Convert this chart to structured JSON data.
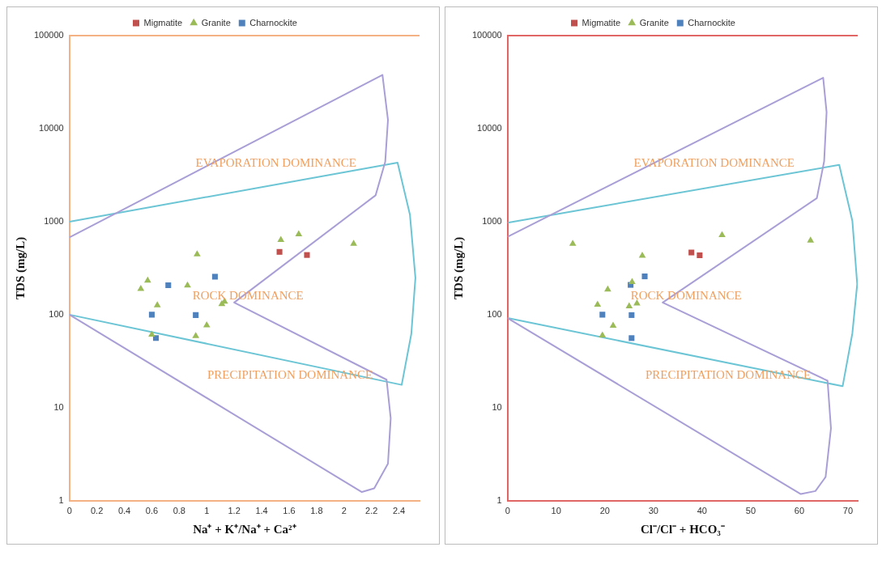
{
  "chart_data": [
    {
      "type": "scatter",
      "log": "y",
      "legend": "top",
      "xlabel": "Na⁺ + K⁺/Na⁺ + Ca²⁺",
      "ylabel": "TDS (mg/L)",
      "xlim": [
        0,
        2.55
      ],
      "xticks": [
        0,
        0.2,
        0.4,
        0.6,
        0.8,
        1,
        1.2,
        1.4,
        1.6,
        1.8,
        2,
        2.2,
        {
          "value": 2.4,
          "label": "2.4"
        }
      ],
      "ylim": [
        1,
        100000
      ],
      "yticks": [
        1,
        10,
        100,
        1000,
        10000,
        100000
      ],
      "series": [
        {
          "name": "Migmatite",
          "color": "#c0504d",
          "marker": "square",
          "x": [
            1.53,
            1.73
          ],
          "values": [
            473,
            438
          ]
        },
        {
          "name": "Granite",
          "color": "#9bbb59",
          "marker": "triangle",
          "x": [
            1.54,
            1.67,
            2.07,
            0.93,
            0.57,
            0.52,
            0.86,
            0.64,
            1.11,
            1.13,
            1.0,
            0.92,
            0.6
          ],
          "values": [
            637,
            731,
            578,
            446,
            232,
            189,
            206,
            126,
            130,
            138,
            77,
            59,
            61
          ]
        },
        {
          "name": "Charnockite",
          "color": "#4f81bd",
          "marker": "square",
          "x": [
            0.72,
            1.06,
            0.6,
            0.92,
            0.63
          ],
          "values": [
            207,
            256,
            100,
            99,
            56
          ]
        },
        {
          "type": "line",
          "color": "#a99fd6",
          "marker": "none",
          "x": [
            0,
            2.28,
            2.32,
            2.3,
            2.23,
            1.2,
            2.31,
            2.34,
            2.32,
            2.22,
            2.13,
            0
          ],
          "values": [
            676,
            37800,
            12400,
            4390,
            1920,
            135,
            20,
            7.7,
            2.5,
            1.36,
            1.24,
            100
          ]
        },
        {
          "type": "line",
          "color": "#6cc5d5",
          "marker": "none",
          "x": [
            0,
            2.39,
            2.48,
            2.52,
            2.49,
            2.42,
            0
          ],
          "values": [
            1000,
            4300,
            1190,
            249,
            62,
            17.6,
            100
          ]
        }
      ],
      "annotations": [
        "EVAPORATION DOMINANCE",
        "ROCK DOMINANCE",
        "PRECIPITATION DOMINANCE"
      ]
    },
    {
      "type": "scatter",
      "log": "y",
      "legend": "top",
      "xlabel": "Cl⁻/Cl⁻ + HCO₃⁻",
      "ylabel": "TDS (mg/L)",
      "xlim": [
        0,
        72
      ],
      "xticks": [
        0,
        10,
        20,
        30,
        40,
        50,
        60,
        70
      ],
      "ylim": [
        1,
        100000
      ],
      "yticks": [
        1,
        10,
        100,
        1000,
        10000,
        100000
      ],
      "series": [
        {
          "name": "Migmatite",
          "color": "#c0504d",
          "marker": "square",
          "x": [
            37.8,
            39.5
          ],
          "values": [
            466,
            435
          ]
        },
        {
          "name": "Granite",
          "color": "#9bbb59",
          "marker": "triangle",
          "x": [
            13.4,
            44.1,
            62.3,
            27.7,
            25.6,
            20.6,
            18.5,
            25.0,
            26.6,
            21.7,
            19.5
          ],
          "values": [
            578,
            719,
            626,
            431,
            224,
            187,
            128,
            123,
            132,
            76,
            60
          ]
        },
        {
          "name": "Charnockite",
          "color": "#4f81bd",
          "marker": "square",
          "x": [
            25.3,
            28.2,
            19.5,
            25.5,
            25.5
          ],
          "values": [
            209,
            258,
            100,
            99,
            56
          ]
        },
        {
          "type": "line",
          "color": "#a99fd6",
          "marker": "none",
          "x": [
            0,
            64.9,
            65.6,
            65.1,
            63.6,
            31.9,
            65.8,
            66.5,
            65.4,
            63.3,
            60.3,
            0
          ],
          "values": [
            689,
            35200,
            15000,
            4460,
            1790,
            135,
            19.5,
            6.0,
            1.8,
            1.27,
            1.18,
            92
          ]
        },
        {
          "type": "line",
          "color": "#6cc5d5",
          "marker": "none",
          "x": [
            0,
            68.2,
            70.9,
            71.9,
            70.9,
            68.9,
            0
          ],
          "values": [
            975,
            4080,
            1020,
            213,
            63,
            17,
            92
          ]
        }
      ],
      "annotations": [
        "EVAPORATION DOMINANCE",
        "ROCK DOMINANCE",
        "PRECIPITATION DOMINANCE"
      ]
    }
  ]
}
